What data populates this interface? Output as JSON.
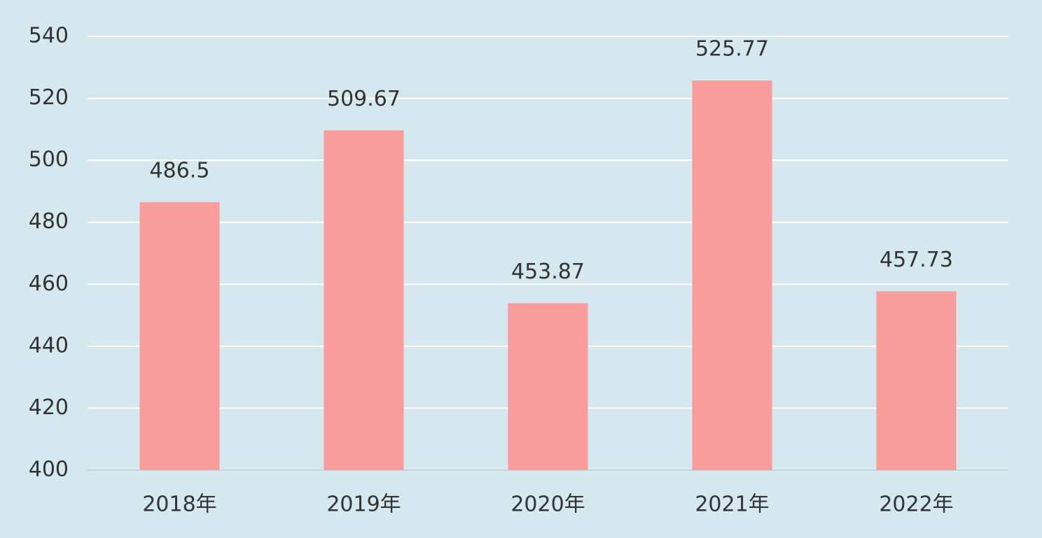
{
  "chart_data": {
    "type": "bar",
    "categories": [
      "2018年",
      "2019年",
      "2020年",
      "2021年",
      "2022年"
    ],
    "values": [
      486.5,
      509.67,
      453.87,
      525.77,
      457.73
    ],
    "color": "#f99d9c",
    "ylim": [
      400,
      540
    ],
    "yticks": [
      400,
      420,
      440,
      460,
      480,
      500,
      520,
      540
    ],
    "grid": true
  }
}
